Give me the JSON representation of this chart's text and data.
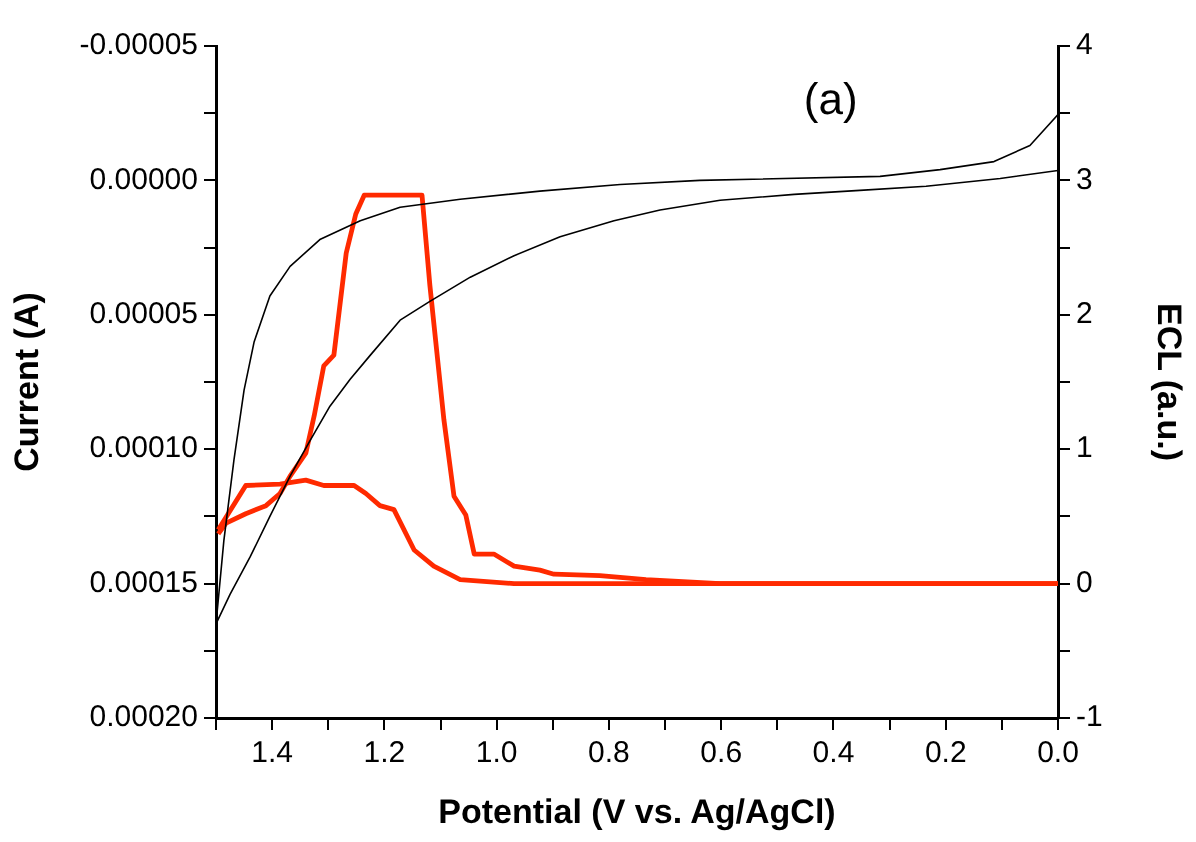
{
  "chart_data": {
    "type": "line",
    "xlabel": "Potential (V vs. Ag/AgCl)",
    "ylabel": "Current (A)",
    "y2label": "ECL (a.u.)",
    "annotations": [
      "(a)"
    ],
    "xlim": [
      1.5,
      0.0
    ],
    "xticks": [
      {
        "value": 1.5,
        "label": null
      },
      1.4,
      {
        "value": 1.3,
        "label": null
      },
      1.2,
      {
        "value": 1.1,
        "label": null
      },
      {
        "value": 1,
        "label": "1.0"
      },
      {
        "value": 0.9,
        "label": null
      },
      0.8,
      {
        "value": 0.7,
        "label": null
      },
      0.6,
      {
        "value": 0.5,
        "label": null
      },
      0.4,
      {
        "value": 0.3,
        "label": null
      },
      0.2,
      {
        "value": 0.1,
        "label": null
      },
      {
        "value": 0,
        "label": "0.0"
      }
    ],
    "ylim": [
      0.0002,
      -5e-05
    ],
    "yticks": [
      {
        "value": -5e-05,
        "label": "-0.00005"
      },
      {
        "value": -2.5e-05,
        "label": null
      },
      {
        "value": 0,
        "label": "0.00000"
      },
      {
        "value": 2.5e-05,
        "label": null
      },
      {
        "value": 5e-05,
        "label": "0.00005"
      },
      {
        "value": 7.5e-05,
        "label": null
      },
      {
        "value": 0.0001,
        "label": "0.00010"
      },
      {
        "value": 0.000125,
        "label": null
      },
      {
        "value": 0.00015,
        "label": "0.00015"
      },
      {
        "value": 0.000175,
        "label": null
      },
      {
        "value": 0.0002,
        "label": "0.00020"
      }
    ],
    "y2lim": [
      -1,
      4
    ],
    "y2ticks": [
      -1,
      {
        "value": -0.5,
        "label": null
      },
      0,
      {
        "value": 0.5,
        "label": null
      },
      1,
      {
        "value": 1.5,
        "label": null
      },
      2,
      {
        "value": 2.5,
        "label": null
      },
      3,
      {
        "value": 3.5,
        "label": null
      },
      4
    ],
    "grid": false,
    "legend": false,
    "marker": "none",
    "line_style": "solid",
    "series": [
      {
        "color": "#000000",
        "x": [
          1.5,
          1.486,
          1.468,
          1.45,
          1.432,
          1.404,
          1.368,
          1.315,
          1.243,
          1.172,
          1.065,
          0.923,
          0.78,
          0.638,
          0.317,
          0.21,
          0.114,
          0.05,
          0.0
        ],
        "values": [
          0.000165,
          0.000134,
          0.000104,
          7.8e-05,
          6e-05,
          4.3e-05,
          3.2e-05,
          2.2e-05,
          1.5e-05,
          1e-05,
          7e-06,
          4e-06,
          1.5e-06,
          0,
          -1.5e-06,
          -4e-06,
          -7e-06,
          -1.3e-05,
          -2.45e-05
        ]
      },
      {
        "color": "#000000",
        "x": [
          1.5,
          1.475,
          1.439,
          1.404,
          1.368,
          1.333,
          1.297,
          1.261,
          1.225,
          1.172,
          1.119,
          1.047,
          0.969,
          0.887,
          0.791,
          0.709,
          0.602,
          0.47,
          0.353,
          0.235,
          0.103,
          0.0
        ],
        "values": [
          0.000165,
          0.000154,
          0.00014,
          0.000125,
          0.00011,
          9.7e-05,
          8.4e-05,
          7.4e-05,
          6.5e-05,
          5.2e-05,
          4.5e-05,
          3.6e-05,
          2.8e-05,
          2.1e-05,
          1.5e-05,
          1.1e-05,
          7.4e-06,
          5.2e-06,
          3.7e-06,
          2.2e-06,
          -7e-07,
          -3.7e-06
        ]
      },
      {
        "color": "#ff2a00",
        "axis": "y2",
        "x": [
          1.496,
          1.482,
          1.447,
          1.411,
          1.386,
          1.368,
          1.34,
          1.325,
          1.308,
          1.29,
          1.268,
          1.251,
          1.236,
          1.133,
          1.119,
          1.094,
          1.076,
          1.055,
          1.04,
          1.005,
          0.969,
          0.923,
          0.898,
          0.816,
          0.734,
          0.602,
          0.0
        ],
        "values": [
          0.37,
          0.45,
          0.52,
          0.58,
          0.67,
          0.8,
          0.97,
          1.25,
          1.62,
          1.7,
          2.46,
          2.75,
          2.89,
          2.89,
          2.22,
          1.22,
          0.65,
          0.51,
          0.22,
          0.22,
          0.13,
          0.1,
          0.07,
          0.06,
          0.03,
          0,
          0
        ]
      },
      {
        "color": "#ff2a00",
        "axis": "y2",
        "x": [
          1.496,
          1.447,
          1.386,
          1.34,
          1.308,
          1.254,
          1.233,
          1.208,
          1.183,
          1.147,
          1.112,
          1.065,
          0.969,
          0.0
        ],
        "values": [
          0.4,
          0.73,
          0.74,
          0.77,
          0.73,
          0.73,
          0.67,
          0.58,
          0.55,
          0.25,
          0.13,
          0.03,
          0,
          0
        ]
      }
    ]
  }
}
